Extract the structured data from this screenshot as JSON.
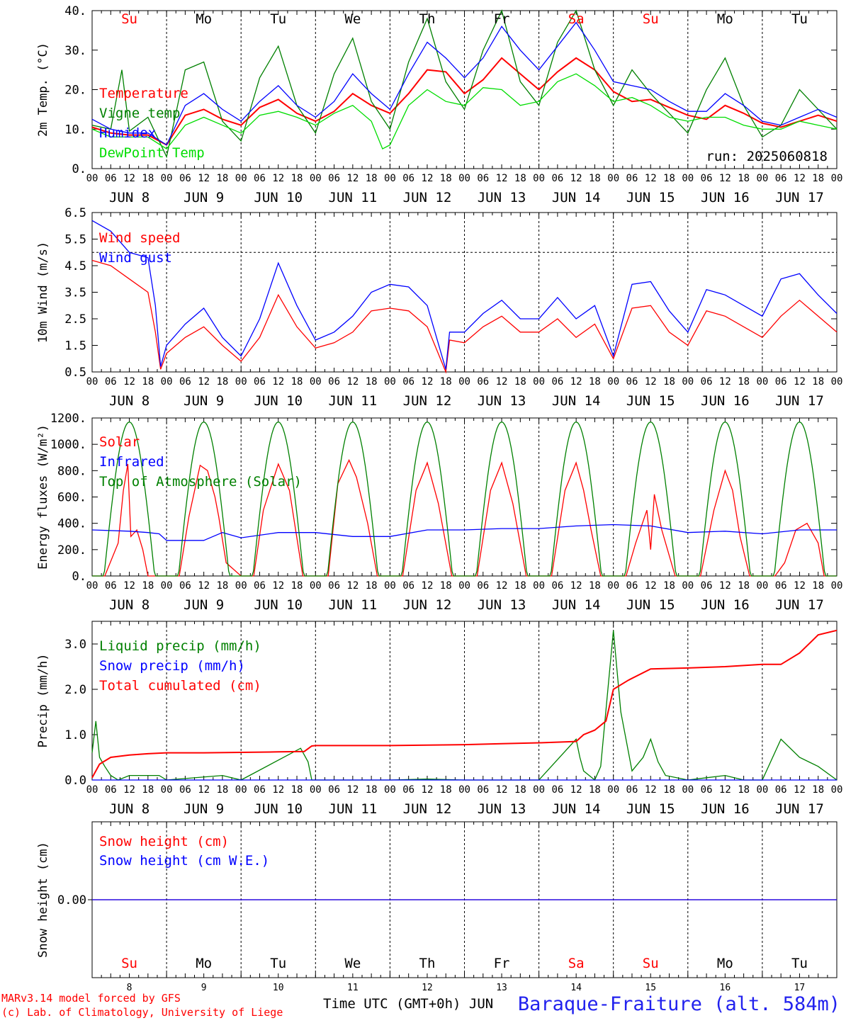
{
  "run_label": "run: 2025060818",
  "credits": [
    "MARv3.14 model forced by GFS",
    "(c) Lab. of Climatology, University of Liege"
  ],
  "x_axis_label": "Time UTC (GMT+0h)",
  "x_axis_month": "JUN",
  "station": "Baraque-Fraiture (alt. 584m)",
  "hour_tick_labels": [
    "00",
    "06",
    "12",
    "18"
  ],
  "final_tick_label": "00",
  "day_labels": [
    "JUN  8",
    "JUN  9",
    "JUN 10",
    "JUN 11",
    "JUN 12",
    "JUN 13",
    "JUN 14",
    "JUN 15",
    "JUN 16",
    "JUN 17"
  ],
  "weekdays": [
    "Su",
    "Mo",
    "Tu",
    "We",
    "Th",
    "Fr",
    "Sa",
    "Su",
    "Mo",
    "Tu"
  ],
  "day_numbers": [
    "8",
    "9",
    "10",
    "11",
    "12",
    "13",
    "14",
    "15",
    "16",
    "17"
  ],
  "colors": {
    "red": "#ff0000",
    "blue": "#0000ff",
    "green": "#008000",
    "lime": "#00dd00",
    "weekend": "#ff0000",
    "weekday": "#000000"
  },
  "chart_data": [
    {
      "type": "line",
      "ylabel": "2m Temp. (°C)",
      "ylim": [
        0,
        40
      ],
      "yticks": [
        "0.",
        "10.",
        "20.",
        "30.",
        "40."
      ],
      "xlim_days": [
        0,
        10
      ],
      "grid": "vertical dashed at midnight",
      "legend_position": "left",
      "series": [
        {
          "name": "Temperature",
          "color": "red",
          "x": [
            0,
            0.25,
            0.5,
            0.75,
            1,
            1.25,
            1.5,
            1.75,
            2,
            2.25,
            2.5,
            2.75,
            3,
            3.25,
            3.5,
            3.75,
            4,
            4.25,
            4.5,
            4.75,
            5,
            5.25,
            5.5,
            5.75,
            6,
            6.25,
            6.5,
            6.75,
            7,
            7.25,
            7.5,
            7.75,
            8,
            8.25,
            8.5,
            8.75,
            9,
            9.25,
            9.5,
            9.75,
            10
          ],
          "y": [
            10.5,
            9,
            8.5,
            8.5,
            6,
            13.5,
            15,
            12.5,
            11,
            15.5,
            17.5,
            14,
            12,
            14.5,
            19,
            16,
            14,
            19,
            25,
            24.5,
            19,
            22.5,
            28,
            24,
            20,
            24.5,
            28,
            25,
            19.5,
            17,
            17.5,
            15.5,
            13.5,
            12.5,
            16,
            14,
            11.5,
            10.5,
            12,
            13.5,
            12
          ]
        },
        {
          "name": "Vigne temp",
          "color": "green",
          "x": [
            0,
            0.25,
            0.4,
            0.5,
            0.75,
            1,
            1.25,
            1.5,
            1.75,
            2,
            2.25,
            2.5,
            2.75,
            3,
            3.25,
            3.5,
            3.75,
            4,
            4.25,
            4.5,
            4.75,
            5,
            5.25,
            5.5,
            5.75,
            6,
            6.25,
            6.5,
            6.75,
            7,
            7.25,
            7.5,
            7.75,
            8,
            8.25,
            8.5,
            8.75,
            9,
            9.25,
            9.5,
            9.75,
            10
          ],
          "y": [
            11,
            10,
            25,
            9.5,
            13,
            3,
            25,
            27,
            12,
            7,
            23,
            31,
            16,
            9,
            24,
            33,
            17,
            10,
            27,
            38,
            22,
            15,
            30,
            40,
            22,
            16,
            32,
            40,
            25,
            16,
            25,
            19,
            14,
            9,
            20,
            28,
            16,
            8,
            11,
            20,
            15,
            10
          ]
        },
        {
          "name": "Humidex",
          "color": "blue",
          "x": [
            0,
            0.25,
            0.5,
            0.75,
            1,
            1.25,
            1.5,
            1.75,
            2,
            2.25,
            2.5,
            2.75,
            3,
            3.25,
            3.5,
            3.75,
            4,
            4.25,
            4.5,
            4.75,
            5,
            5.25,
            5.5,
            5.75,
            6,
            6.25,
            6.5,
            6.75,
            7,
            7.25,
            7.5,
            7.75,
            8,
            8.25,
            8.5,
            8.75,
            9,
            9.25,
            9.5,
            9.75,
            10
          ],
          "y": [
            12.5,
            10,
            9,
            9,
            6,
            16,
            19,
            15,
            12,
            17,
            21,
            16,
            13,
            17,
            24,
            19,
            15,
            24,
            32,
            28,
            23,
            28,
            36,
            30,
            25,
            31,
            37,
            30,
            22,
            21,
            20,
            17,
            14.5,
            14.5,
            19,
            16,
            12,
            11,
            13,
            15,
            13
          ]
        },
        {
          "name": "DewPoint Temp",
          "color": "lime",
          "x": [
            0,
            0.25,
            0.5,
            0.75,
            1,
            1.25,
            1.5,
            1.75,
            2,
            2.25,
            2.5,
            2.75,
            3,
            3.25,
            3.5,
            3.75,
            3.9,
            4,
            4.25,
            4.5,
            4.75,
            5,
            5.25,
            5.5,
            5.75,
            6,
            6.25,
            6.5,
            6.75,
            7,
            7.25,
            7.5,
            7.75,
            8,
            8.25,
            8.5,
            8.75,
            9,
            9.25,
            9.5,
            9.75,
            10
          ],
          "y": [
            10,
            8,
            8,
            8,
            5,
            11,
            13,
            11,
            9,
            13.5,
            14.5,
            13,
            11,
            14,
            16,
            12,
            5,
            6,
            16,
            20,
            17,
            16,
            20.5,
            20,
            16,
            17,
            22,
            24,
            21,
            17,
            18,
            16,
            13,
            12,
            13,
            13,
            11,
            10,
            10,
            12,
            11,
            10
          ]
        }
      ]
    },
    {
      "type": "line",
      "ylabel": "10m Wind (m/s)",
      "ylim": [
        0.5,
        6.5
      ],
      "yticks": [
        "0.5",
        "1.5",
        "2.5",
        "3.5",
        "4.5",
        "5.5",
        "6.5"
      ],
      "reference_line": 5.0,
      "legend_position": "left",
      "series": [
        {
          "name": "Wind speed",
          "color": "red",
          "x": [
            0,
            0.25,
            0.5,
            0.75,
            0.85,
            0.92,
            1,
            1.25,
            1.5,
            1.75,
            2,
            2.25,
            2.5,
            2.75,
            3,
            3.25,
            3.5,
            3.75,
            4,
            4.25,
            4.5,
            4.75,
            4.8,
            5,
            5.25,
            5.5,
            5.75,
            6,
            6.25,
            6.5,
            6.75,
            7,
            7.25,
            7.5,
            7.75,
            8,
            8.25,
            8.5,
            8.75,
            9,
            9.25,
            9.5,
            9.75,
            10
          ],
          "y": [
            4.7,
            4.5,
            4.0,
            3.5,
            2.0,
            0.6,
            1.2,
            1.8,
            2.2,
            1.5,
            0.9,
            1.8,
            3.4,
            2.2,
            1.4,
            1.6,
            2.0,
            2.8,
            2.9,
            2.8,
            2.2,
            0.5,
            1.7,
            1.6,
            2.2,
            2.6,
            2.0,
            2.0,
            2.5,
            1.8,
            2.3,
            1.0,
            2.9,
            3.0,
            2.0,
            1.5,
            2.8,
            2.6,
            2.2,
            1.8,
            2.6,
            3.2,
            2.6,
            2.0
          ]
        },
        {
          "name": "Wind gust",
          "color": "blue",
          "x": [
            0,
            0.25,
            0.5,
            0.75,
            0.85,
            0.92,
            1,
            1.25,
            1.5,
            1.75,
            2,
            2.25,
            2.5,
            2.75,
            3,
            3.25,
            3.5,
            3.75,
            4,
            4.25,
            4.5,
            4.75,
            4.8,
            5,
            5.25,
            5.5,
            5.75,
            6,
            6.25,
            6.5,
            6.75,
            7,
            7.25,
            7.5,
            7.75,
            8,
            8.25,
            8.5,
            8.75,
            9,
            9.25,
            9.5,
            9.75,
            10
          ],
          "y": [
            6.2,
            5.8,
            5.0,
            4.8,
            3.0,
            0.7,
            1.5,
            2.3,
            2.9,
            1.8,
            1.1,
            2.5,
            4.6,
            3.0,
            1.7,
            2.0,
            2.6,
            3.5,
            3.8,
            3.7,
            3.0,
            0.6,
            2.0,
            2.0,
            2.7,
            3.2,
            2.5,
            2.5,
            3.3,
            2.5,
            3.0,
            1.1,
            3.8,
            3.9,
            2.8,
            2.0,
            3.6,
            3.4,
            3.0,
            2.6,
            4.0,
            4.2,
            3.4,
            2.7
          ]
        }
      ]
    },
    {
      "type": "line",
      "ylabel": "Energy fluxes (W/m²)",
      "ylim": [
        0,
        1200
      ],
      "yticks": [
        "0.",
        "200.",
        "400.",
        "600.",
        "800.",
        "1000.",
        "1200."
      ],
      "legend_position": "left",
      "series": [
        {
          "name": "Solar",
          "color": "red",
          "x": [
            0,
            0.17,
            0.35,
            0.42,
            0.48,
            0.52,
            0.6,
            0.68,
            0.75,
            0.9,
            1,
            1.17,
            1.3,
            1.45,
            1.55,
            1.65,
            1.7,
            1.8,
            2,
            2.17,
            2.3,
            2.5,
            2.65,
            2.83,
            3,
            3.17,
            3.3,
            3.45,
            3.55,
            3.7,
            3.83,
            4,
            4.17,
            4.35,
            4.5,
            4.65,
            4.83,
            5,
            5.17,
            5.35,
            5.5,
            5.65,
            5.83,
            6,
            6.17,
            6.35,
            6.5,
            6.6,
            6.7,
            6.83,
            7,
            7.17,
            7.3,
            7.45,
            7.5,
            7.55,
            7.65,
            7.83,
            8,
            8.17,
            8.35,
            8.5,
            8.6,
            8.7,
            8.83,
            9,
            9.17,
            9.3,
            9.45,
            9.6,
            9.75,
            9.83,
            10
          ],
          "y": [
            0,
            0,
            250,
            650,
            850,
            300,
            350,
            200,
            0,
            0,
            0,
            0,
            450,
            840,
            800,
            600,
            450,
            100,
            0,
            0,
            500,
            850,
            650,
            0,
            0,
            0,
            700,
            880,
            750,
            400,
            0,
            0,
            0,
            650,
            860,
            550,
            0,
            0,
            0,
            650,
            860,
            550,
            0,
            0,
            0,
            650,
            860,
            650,
            350,
            0,
            0,
            0,
            250,
            500,
            200,
            620,
            350,
            0,
            0,
            0,
            500,
            800,
            650,
            300,
            0,
            0,
            0,
            100,
            350,
            400,
            250,
            0,
            0
          ]
        },
        {
          "name": "Infrared",
          "color": "blue",
          "x": [
            0,
            0.5,
            0.75,
            0.9,
            1,
            1.5,
            1.75,
            2,
            2.5,
            3,
            3.5,
            4,
            4.5,
            5,
            5.5,
            6,
            6.5,
            7,
            7.5,
            8,
            8.5,
            9,
            9.5,
            10
          ],
          "y": [
            350,
            340,
            330,
            320,
            270,
            270,
            330,
            290,
            330,
            330,
            300,
            300,
            350,
            350,
            360,
            360,
            380,
            390,
            380,
            330,
            340,
            320,
            350,
            350
          ]
        },
        {
          "name": "Top of Atmosphere (Solar)",
          "color": "green",
          "profile": "daily cosine, sunrise ~0.16 d, sunset ~0.84 d, peak at noon",
          "peak": 1170
        }
      ]
    },
    {
      "type": "line",
      "ylabel": "Precip (mm/h)",
      "ylim": [
        0,
        3.5
      ],
      "yticks": [
        "0.0",
        "1.0",
        "2.0",
        "3.0"
      ],
      "legend_position": "left",
      "series": [
        {
          "name": "Liquid precip (mm/h)",
          "color": "green",
          "x": [
            0,
            0.05,
            0.1,
            0.17,
            0.25,
            0.35,
            0.5,
            0.75,
            0.9,
            1,
            1.75,
            2,
            2.8,
            2.9,
            2.95,
            3,
            4,
            4.5,
            5,
            5.5,
            6,
            6.5,
            6.55,
            6.6,
            6.75,
            6.83,
            7,
            7.1,
            7.25,
            7.4,
            7.5,
            7.6,
            7.7,
            8,
            8.25,
            8.5,
            8.75,
            9,
            9.25,
            9.5,
            9.75,
            10
          ],
          "y": [
            0.6,
            1.3,
            0.5,
            0.3,
            0.1,
            0,
            0.1,
            0.1,
            0.1,
            0,
            0.1,
            0,
            0.7,
            0.4,
            0,
            0,
            0,
            0.02,
            0,
            0,
            0,
            0.9,
            0.5,
            0.2,
            0,
            0.3,
            3.3,
            1.5,
            0.2,
            0.5,
            0.9,
            0.4,
            0.1,
            0,
            0.05,
            0.1,
            0,
            0,
            0.9,
            0.5,
            0.3,
            0
          ]
        },
        {
          "name": "Snow precip (mm/h)",
          "color": "blue",
          "x": [
            0,
            10
          ],
          "y": [
            0,
            0
          ]
        },
        {
          "name": "Total cumulated (cm)",
          "color": "red",
          "x": [
            0,
            0.1,
            0.25,
            0.5,
            0.75,
            1,
            1.5,
            2,
            2.5,
            2.85,
            2.95,
            3,
            4,
            4.5,
            5,
            5.5,
            6,
            6.5,
            6.6,
            6.75,
            6.9,
            7,
            7.2,
            7.5,
            8,
            8.5,
            9,
            9.25,
            9.5,
            9.75,
            10
          ],
          "y": [
            0.05,
            0.35,
            0.5,
            0.55,
            0.58,
            0.6,
            0.6,
            0.61,
            0.62,
            0.63,
            0.75,
            0.76,
            0.76,
            0.77,
            0.78,
            0.8,
            0.82,
            0.85,
            1.0,
            1.1,
            1.3,
            2.0,
            2.2,
            2.45,
            2.47,
            2.5,
            2.55,
            2.55,
            2.8,
            3.2,
            3.3
          ]
        }
      ]
    },
    {
      "type": "line",
      "ylabel": "Snow height (cm)",
      "yticks": [
        "0.00"
      ],
      "legend_position": "left",
      "series": [
        {
          "name": "Snow height (cm)",
          "color": "red",
          "x": [
            0,
            10
          ],
          "y": [
            0,
            0
          ]
        },
        {
          "name": "Snow height (cm W.E.)",
          "color": "blue",
          "x": [
            0,
            10
          ],
          "y": [
            0,
            0
          ]
        }
      ]
    }
  ]
}
